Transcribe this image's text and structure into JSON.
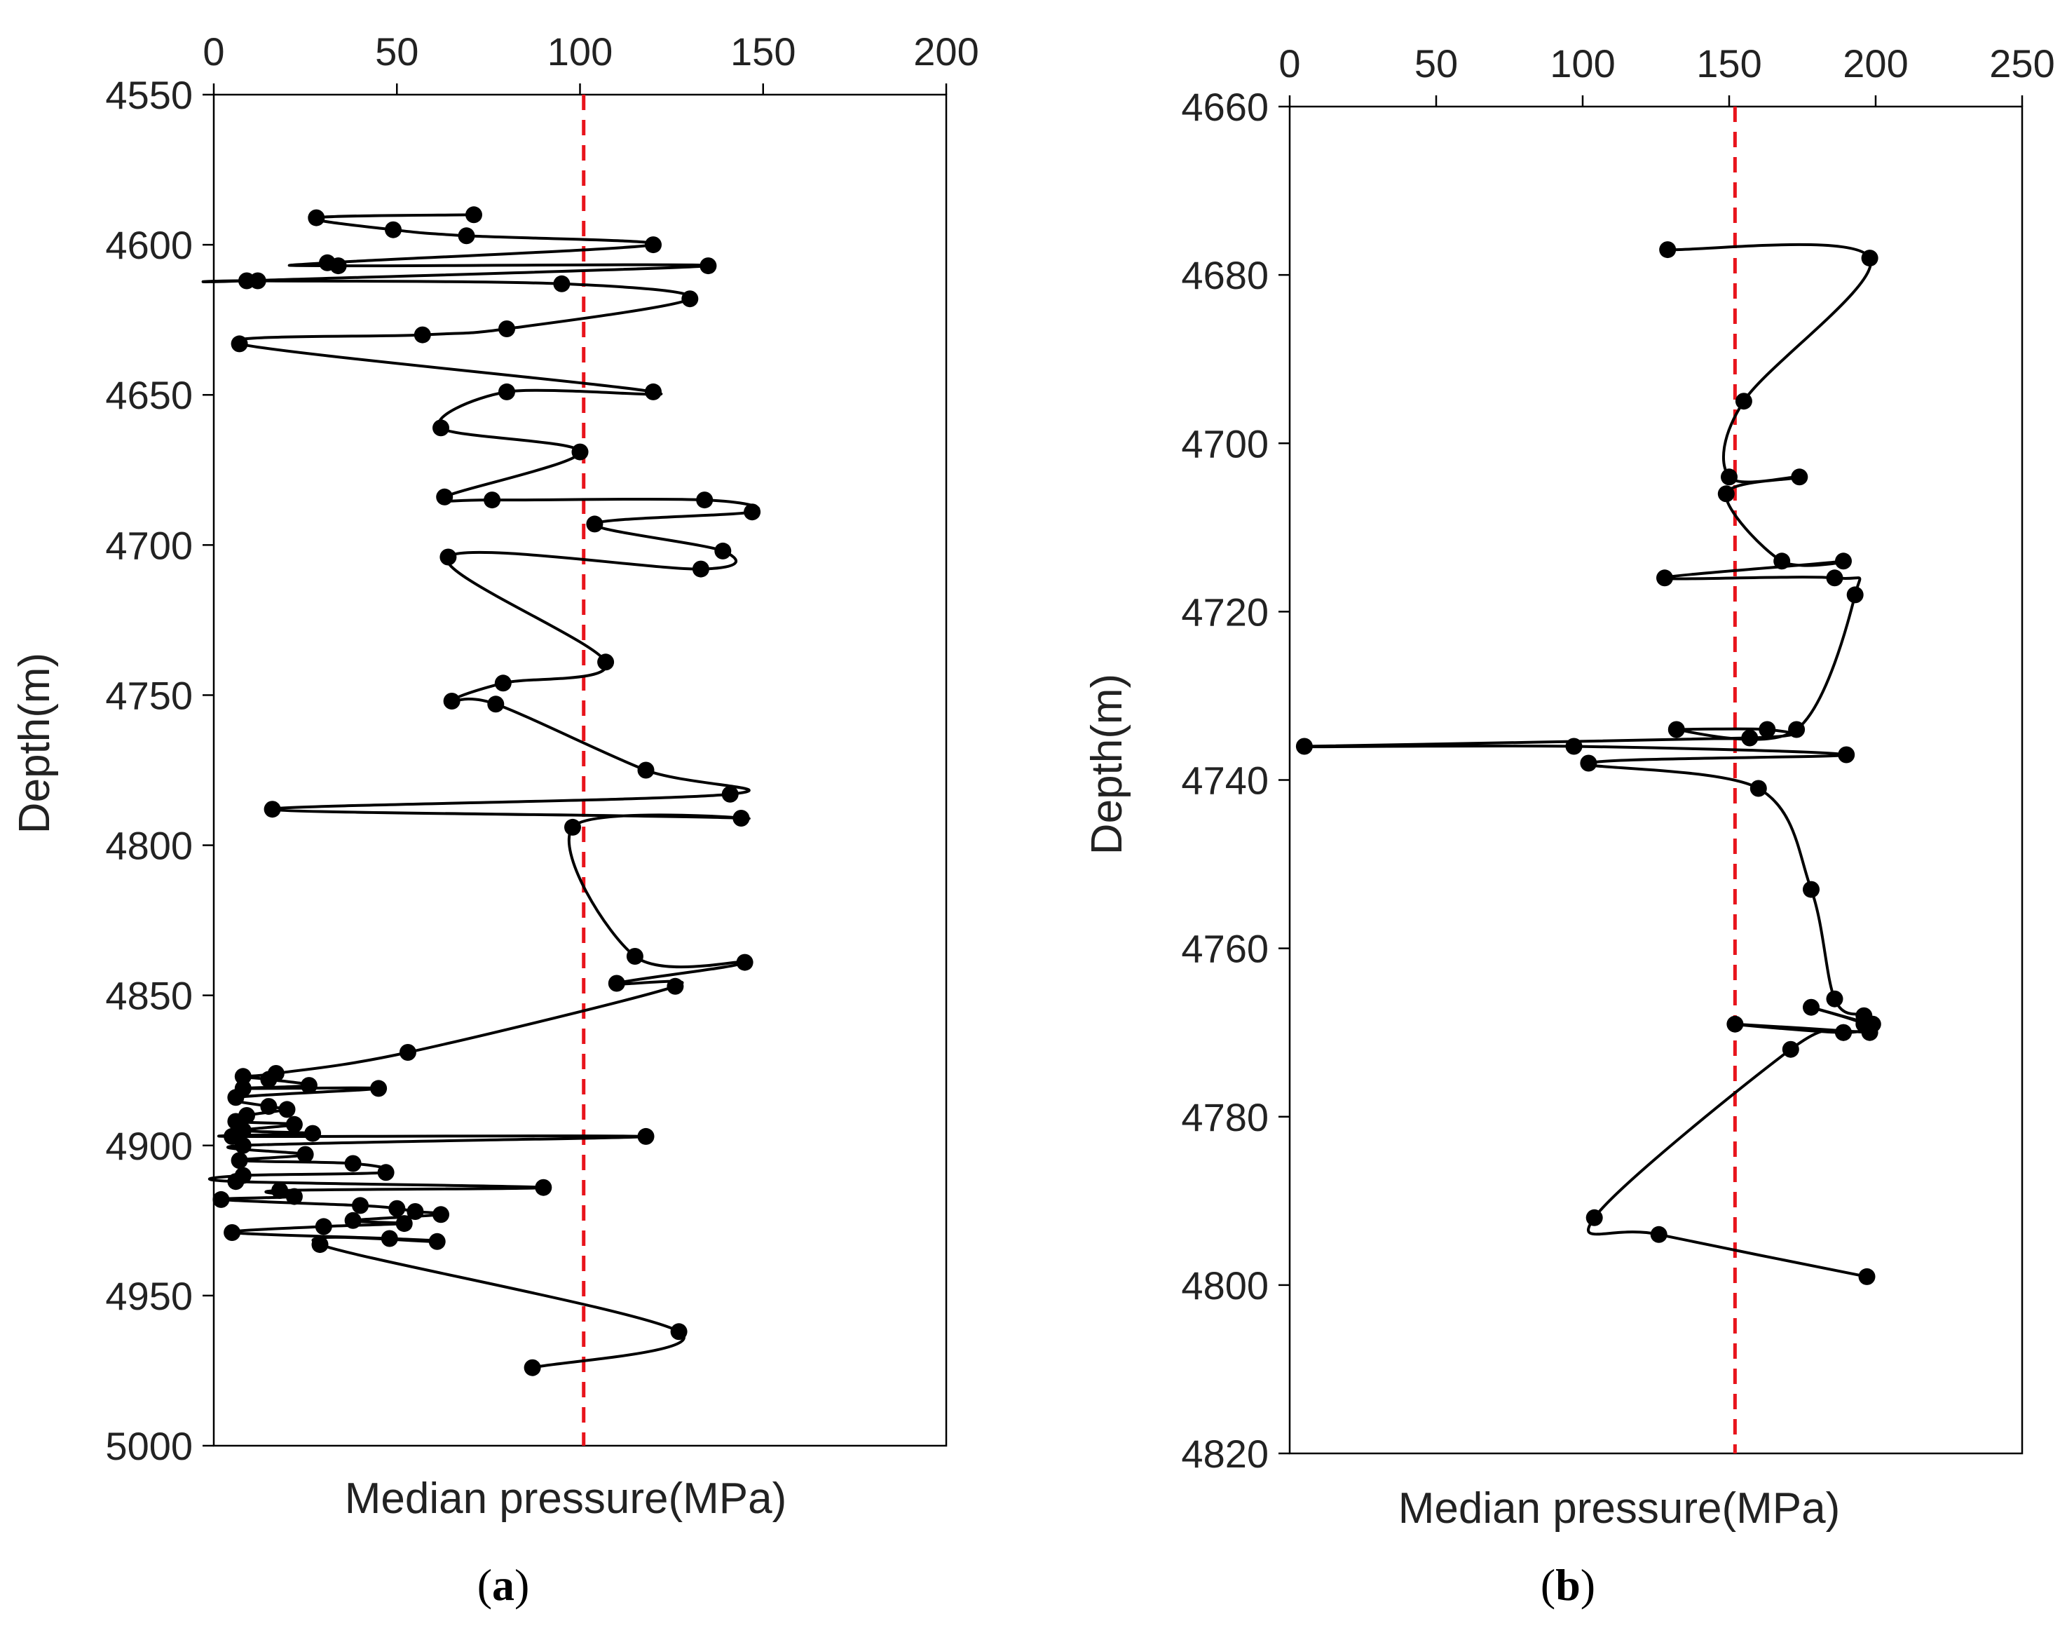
{
  "panels": [
    {
      "label_open": "(",
      "label_letter": "a",
      "label_close": ")"
    },
    {
      "label_open": "(",
      "label_letter": "b",
      "label_close": ")"
    }
  ],
  "colors": {
    "series": "#000000",
    "reference_line": "#e8141c",
    "axis": "#000000"
  },
  "chart_data": [
    {
      "type": "line",
      "xlabel": "Median pressure(MPa)",
      "ylabel": "Depth(m)",
      "xlim": [
        0,
        200
      ],
      "ylim": [
        4550,
        5000
      ],
      "y_inverted": true,
      "x_axis_position": "top",
      "xticks": [
        0,
        50,
        100,
        150,
        200
      ],
      "yticks": [
        4550,
        4600,
        4650,
        4700,
        4750,
        4800,
        4850,
        4900,
        4950,
        5000
      ],
      "reference_line": {
        "x": 101,
        "style": "dashed",
        "color": "#e8141c"
      },
      "series": [
        {
          "marker": "circle",
          "x": [
            71,
            28,
            49,
            69,
            120,
            31,
            34,
            135,
            9,
            12,
            95,
            130,
            80,
            57,
            7,
            120,
            80,
            62,
            100,
            63,
            76,
            134,
            147,
            104,
            139,
            133,
            64,
            107,
            79,
            65,
            77,
            118,
            141,
            16,
            144,
            98,
            115,
            145,
            110,
            126,
            53,
            17,
            8,
            15,
            26,
            8,
            45,
            6,
            15,
            20,
            9,
            6,
            22,
            8,
            27,
            5,
            118,
            8,
            25,
            7,
            38,
            47,
            8,
            6,
            90,
            18,
            22,
            2,
            40,
            50,
            55,
            62,
            38,
            52,
            30,
            5,
            48,
            61,
            29,
            127,
            87
          ],
          "y": [
            4590,
            4591,
            4595,
            4597,
            4600,
            4606,
            4607,
            4607,
            4612,
            4612,
            4613,
            4618,
            4628,
            4630,
            4633,
            4649,
            4649,
            4661,
            4669,
            4684,
            4685,
            4685,
            4689,
            4693,
            4702,
            4708,
            4704,
            4739,
            4746,
            4752,
            4753,
            4775,
            4783,
            4788,
            4791,
            4794,
            4837,
            4839,
            4846,
            4847,
            4869,
            4876,
            4877,
            4878,
            4880,
            4881,
            4881,
            4884,
            4887,
            4888,
            4890,
            4892,
            4893,
            4895,
            4896,
            4897,
            4897,
            4900,
            4903,
            4905,
            4906,
            4909,
            4910,
            4912,
            4914,
            4915,
            4917,
            4918,
            4920,
            4921,
            4922,
            4923,
            4925,
            4926,
            4927,
            4929,
            4931,
            4932,
            4933,
            4962,
            4974
          ]
        }
      ]
    },
    {
      "type": "line",
      "xlabel": "Median pressure(MPa)",
      "ylabel": "Depth(m)",
      "xlim": [
        0,
        250
      ],
      "ylim": [
        4660,
        4820
      ],
      "y_inverted": true,
      "x_axis_position": "top",
      "xticks": [
        0,
        50,
        100,
        150,
        200,
        250
      ],
      "yticks": [
        4660,
        4680,
        4700,
        4720,
        4740,
        4760,
        4780,
        4800,
        4820
      ],
      "reference_line": {
        "x": 152,
        "style": "dashed",
        "color": "#e8141c"
      },
      "series": [
        {
          "marker": "circle",
          "x": [
            129,
            198,
            155,
            150,
            174,
            149,
            168,
            189,
            128,
            186,
            193,
            173,
            132,
            163,
            157,
            5,
            97,
            190,
            102,
            160,
            178,
            186,
            196,
            199,
            178,
            196,
            189,
            152,
            198,
            189,
            171,
            104,
            126,
            197
          ],
          "y": [
            4677,
            4678,
            4695,
            4704,
            4704,
            4706,
            4714,
            4714,
            4716,
            4716,
            4718,
            4734,
            4734,
            4734,
            4735,
            4736,
            4736,
            4737,
            4738,
            4741,
            4753,
            4766,
            4768,
            4769,
            4767,
            4769,
            4770,
            4769,
            4770,
            4770,
            4772,
            4792,
            4794,
            4799
          ]
        }
      ]
    }
  ]
}
